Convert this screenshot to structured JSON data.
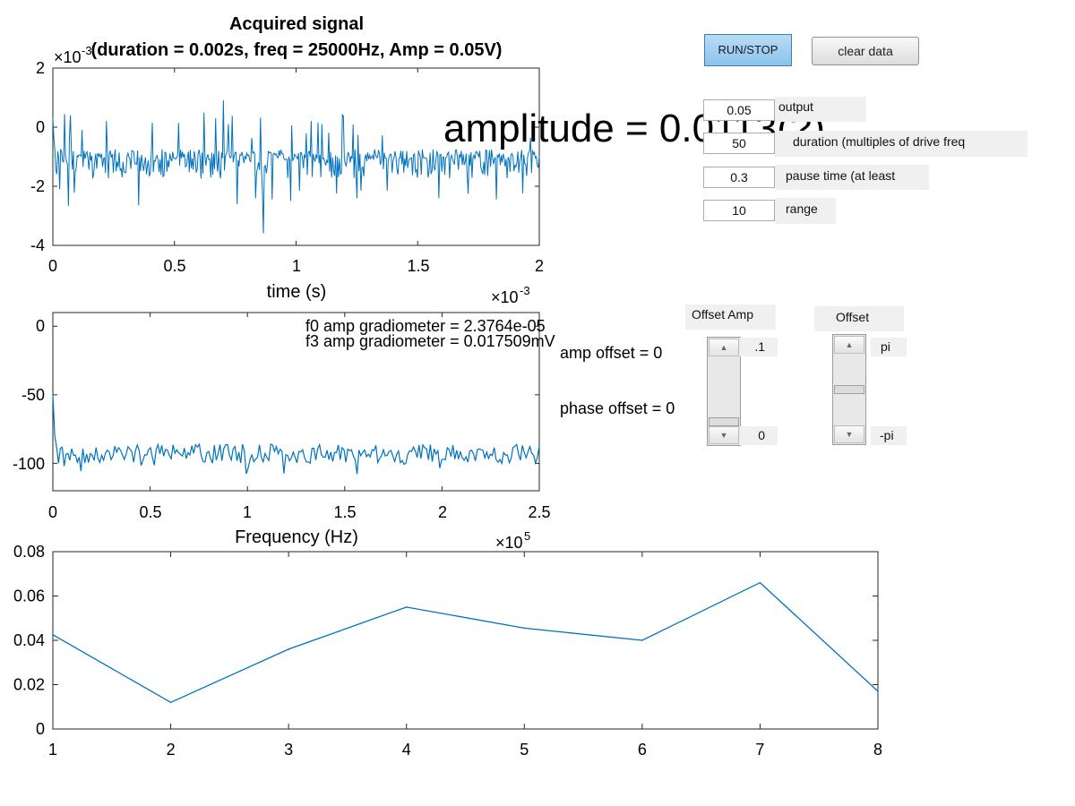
{
  "controls": {
    "run_stop_label": "RUN/STOP",
    "clear_data_label": "clear data",
    "fields": [
      {
        "value": "0.05",
        "label": "output"
      },
      {
        "value": "50",
        "label": "duration (multiples of drive freq"
      },
      {
        "value": "0.3",
        "label": "pause time (at least"
      },
      {
        "value": "10",
        "label": "range"
      }
    ],
    "amplitude_overlay": "amplitude = 0.0113(?)"
  },
  "offsets": {
    "amp_title": "Offset Amp",
    "phase_title": "Offset",
    "amp_max": ".1",
    "amp_min": "0",
    "phase_max": "pi",
    "phase_min": "-pi",
    "amp_offset_text": "amp offset = 0",
    "phase_offset_text": "phase offset = 0",
    "amp_slider_level": 0.0,
    "phase_slider_level": 0.5
  },
  "chart_data": [
    {
      "type": "line",
      "title": "Acquired signal",
      "subtitle": "(duration = 0.002s, freq = 25000Hz, Amp = 0.05V)",
      "xlabel": "time (s)",
      "x_exponent": "-3",
      "y_exponent": "-3",
      "xlim": [
        0,
        2
      ],
      "ylim": [
        -4,
        2
      ],
      "x_ticks": [
        "0",
        "0.5",
        "1",
        "1.5",
        "2"
      ],
      "y_ticks": [
        "2",
        "0",
        "-2",
        "-4"
      ],
      "series_color": "#0072bd",
      "description": "noisy signal, ~500 samples, mostly between -2 and -0.5 (x1e-3) around -1, spikes up to ~0.9 and down to ~-3.6"
    },
    {
      "type": "line",
      "xlabel": "Frequency (Hz)",
      "x_exponent": "5",
      "xlim": [
        0,
        2.5
      ],
      "ylim": [
        -120,
        10
      ],
      "x_ticks": [
        "0",
        "0.5",
        "1",
        "1.5",
        "2",
        "2.5"
      ],
      "y_ticks": [
        "0",
        "-50",
        "-100"
      ],
      "series_color": "#0072bd",
      "annotations": [
        "f0 amp gradiometer = 2.3764e-05",
        "f3 amp gradiometer = 0.017509mV"
      ],
      "description": "spectrum starting near -50 at 0, dropping to ~-90 and fluctuating between -80 and -110"
    },
    {
      "type": "line",
      "x": [
        1,
        2,
        3,
        4,
        5,
        6,
        7,
        8
      ],
      "y": [
        0.0425,
        0.012,
        0.036,
        0.055,
        0.0455,
        0.04,
        0.066,
        0.017
      ],
      "xlim": [
        1,
        8
      ],
      "ylim": [
        0,
        0.08
      ],
      "x_ticks": [
        "1",
        "2",
        "3",
        "4",
        "5",
        "6",
        "7",
        "8"
      ],
      "y_ticks": [
        "0.08",
        "0.06",
        "0.04",
        "0.02",
        "0"
      ],
      "series_color": "#0072bd"
    }
  ]
}
